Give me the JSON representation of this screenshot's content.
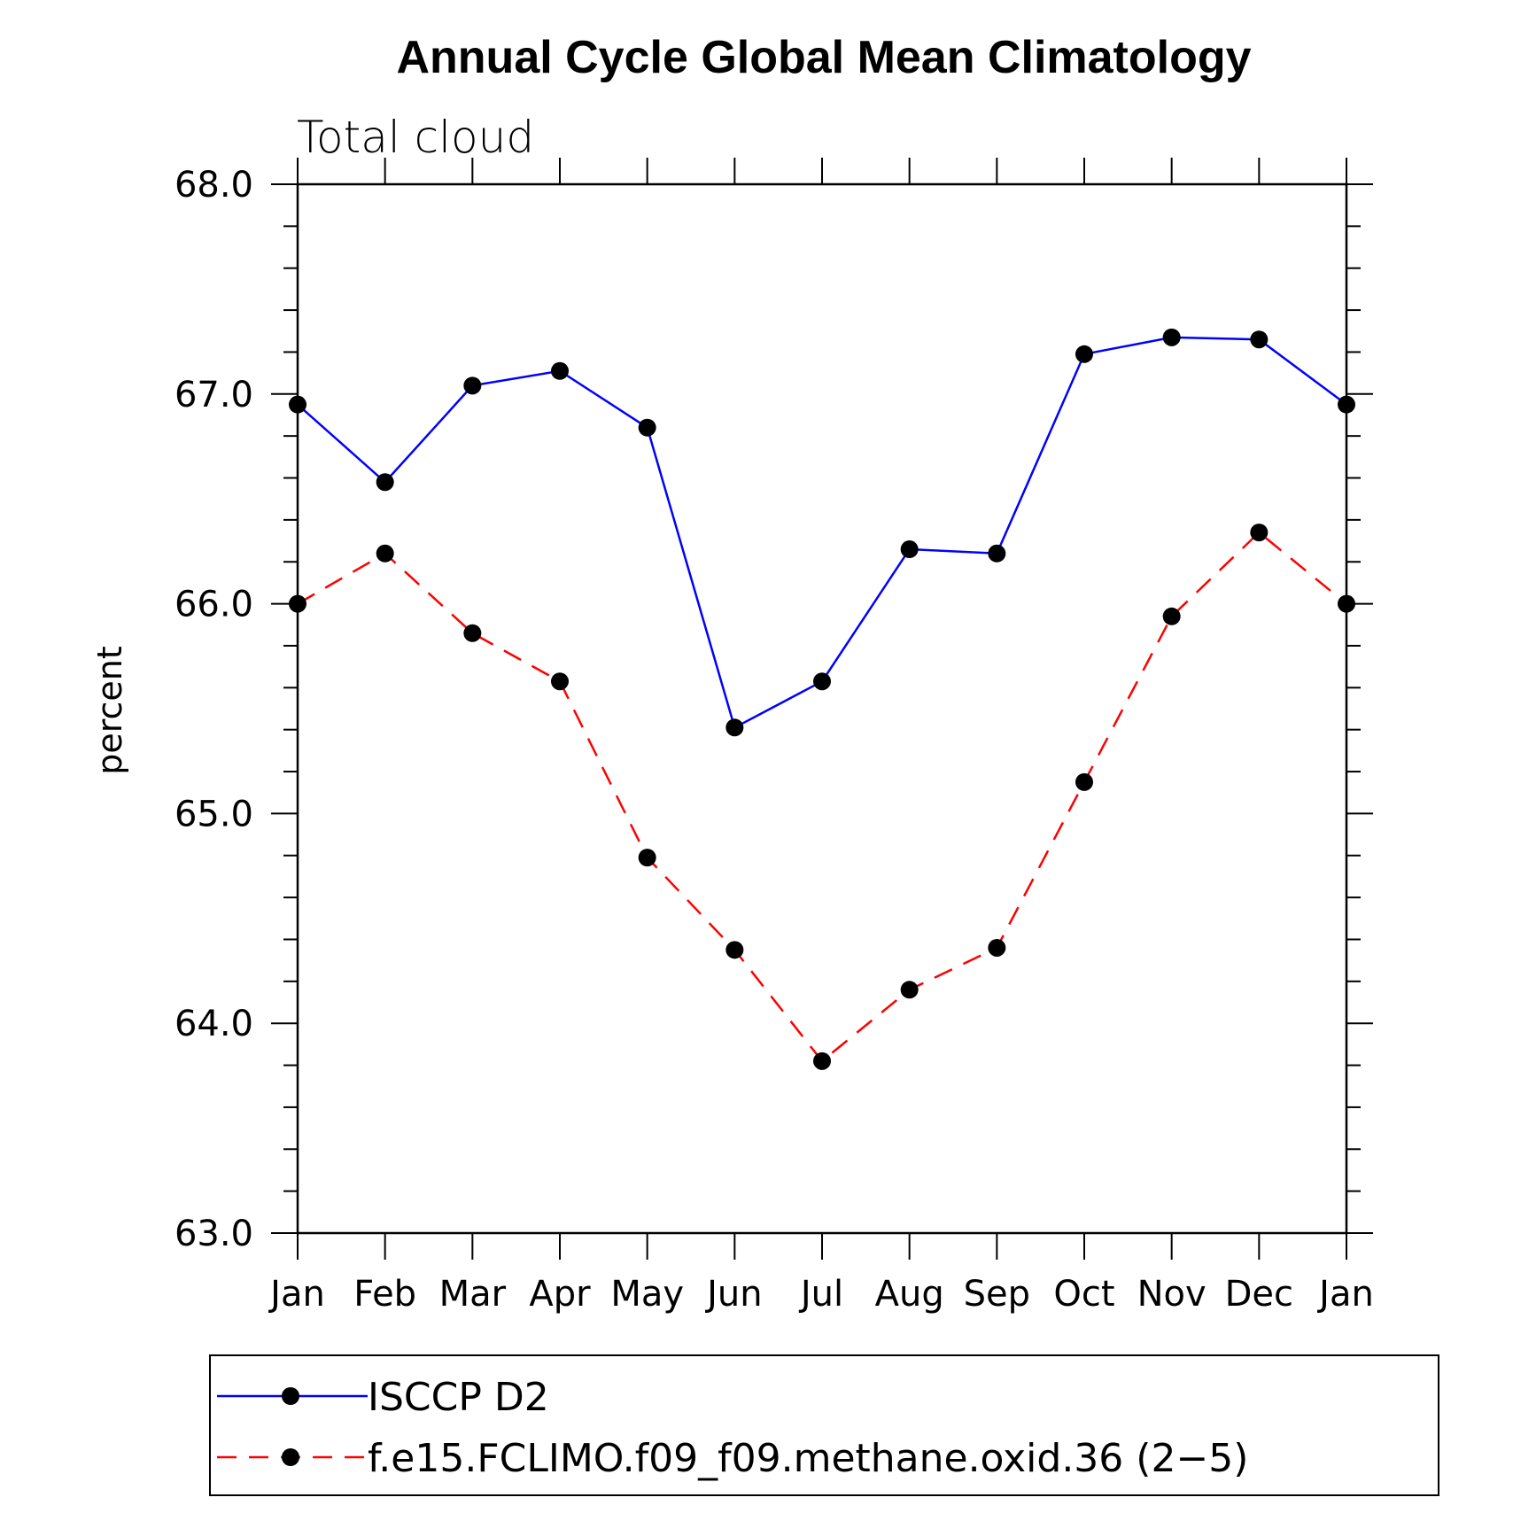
{
  "chart_data": {
    "type": "line",
    "title": "Annual Cycle Global Mean Climatology",
    "subtitle": "Total cloud",
    "xlabel": "",
    "ylabel": "percent",
    "ylim": [
      63.0,
      68.0
    ],
    "y_major_ticks": [
      "63.0",
      "64.0",
      "65.0",
      "66.0",
      "67.0",
      "68.0"
    ],
    "categories": [
      "Jan",
      "Feb",
      "Mar",
      "Apr",
      "May",
      "Jun",
      "Jul",
      "Aug",
      "Sep",
      "Oct",
      "Nov",
      "Dec",
      "Jan"
    ],
    "series": [
      {
        "name": "ISCCP D2",
        "color": "#0000ff",
        "dash": "solid",
        "marker": "filled-circle",
        "values": [
          66.95,
          66.58,
          67.04,
          67.11,
          66.84,
          65.41,
          65.63,
          66.26,
          66.24,
          67.19,
          67.27,
          67.26,
          66.95
        ]
      },
      {
        "name": "f.e15.FCLIMO.f09_f09.methane.oxid.36 (2−5)",
        "color": "#ff0000",
        "dash": "dashed",
        "marker": "filled-circle",
        "values": [
          66.0,
          66.24,
          65.86,
          65.63,
          64.79,
          64.35,
          63.82,
          64.16,
          64.36,
          65.15,
          65.94,
          66.34,
          66.0
        ]
      }
    ],
    "legend_position": "bottom",
    "grid": false
  }
}
